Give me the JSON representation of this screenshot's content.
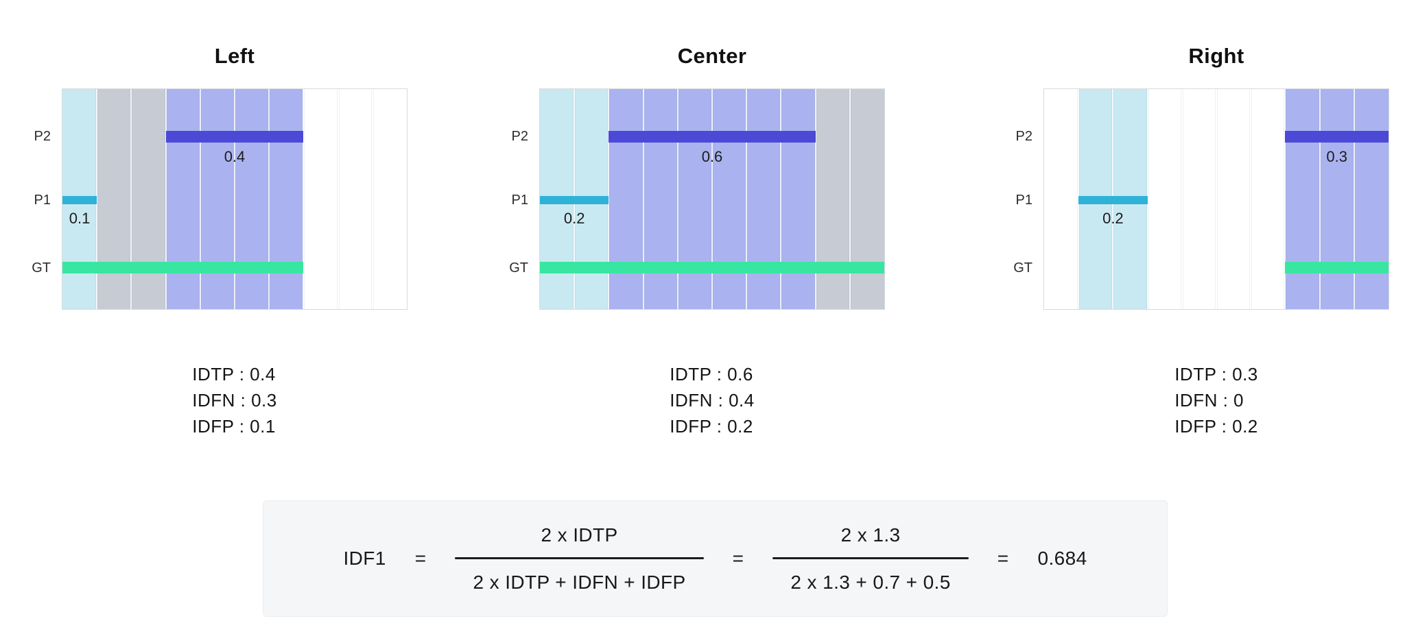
{
  "panels": [
    {
      "title": "Left",
      "bands": [
        {
          "start": 0,
          "end": 1,
          "color": "#c8e9f2"
        },
        {
          "start": 1,
          "end": 3,
          "color": "#c6cbd4"
        },
        {
          "start": 3,
          "end": 7,
          "color": "#aab3ef"
        },
        {
          "start": 7,
          "end": 10,
          "color": "#ffffff"
        }
      ],
      "bars": [
        {
          "row": "P2",
          "start": 3,
          "end": 7,
          "color": "#4b49d6",
          "value": "0.4"
        },
        {
          "row": "P1",
          "start": 0,
          "end": 1,
          "color": "#2fb2d8",
          "value": "0.1"
        },
        {
          "row": "GT",
          "start": 0,
          "end": 7,
          "color": "#38e6a1",
          "value": ""
        }
      ],
      "metrics": [
        "IDTP : 0.4",
        "IDFN : 0.3",
        "IDFP : 0.1"
      ]
    },
    {
      "title": "Center",
      "bands": [
        {
          "start": 0,
          "end": 2,
          "color": "#c8e9f2"
        },
        {
          "start": 2,
          "end": 8,
          "color": "#aab3ef"
        },
        {
          "start": 8,
          "end": 10,
          "color": "#c6cbd4"
        }
      ],
      "bars": [
        {
          "row": "P2",
          "start": 2,
          "end": 8,
          "color": "#4b49d6",
          "value": "0.6"
        },
        {
          "row": "P1",
          "start": 0,
          "end": 2,
          "color": "#2fb2d8",
          "value": "0.2"
        },
        {
          "row": "GT",
          "start": 0,
          "end": 10,
          "color": "#38e6a1",
          "value": ""
        }
      ],
      "metrics": [
        "IDTP : 0.6",
        "IDFN : 0.4",
        "IDFP : 0.2"
      ]
    },
    {
      "title": "Right",
      "bands": [
        {
          "start": 0,
          "end": 1,
          "color": "#ffffff"
        },
        {
          "start": 1,
          "end": 3,
          "color": "#c8e9f2"
        },
        {
          "start": 3,
          "end": 7,
          "color": "#ffffff"
        },
        {
          "start": 7,
          "end": 10,
          "color": "#aab3ef"
        }
      ],
      "bars": [
        {
          "row": "P2",
          "start": 7,
          "end": 10,
          "color": "#4b49d6",
          "value": "0.3"
        },
        {
          "row": "P1",
          "start": 1,
          "end": 3,
          "color": "#2fb2d8",
          "value": "0.2"
        },
        {
          "row": "GT",
          "start": 7,
          "end": 10,
          "color": "#38e6a1",
          "value": ""
        }
      ],
      "metrics": [
        "IDTP : 0.3",
        "IDFN : 0",
        "IDFP : 0.2"
      ]
    }
  ],
  "formula": {
    "lhs": "IDF1",
    "eq": "=",
    "frac1_num": "2 x IDTP",
    "frac1_den": "2 x IDTP + IDFN + IDFP",
    "frac2_num": "2 x 1.3",
    "frac2_den": "2 x 1.3 + 0.7 + 0.5",
    "result": "0.684"
  }
}
